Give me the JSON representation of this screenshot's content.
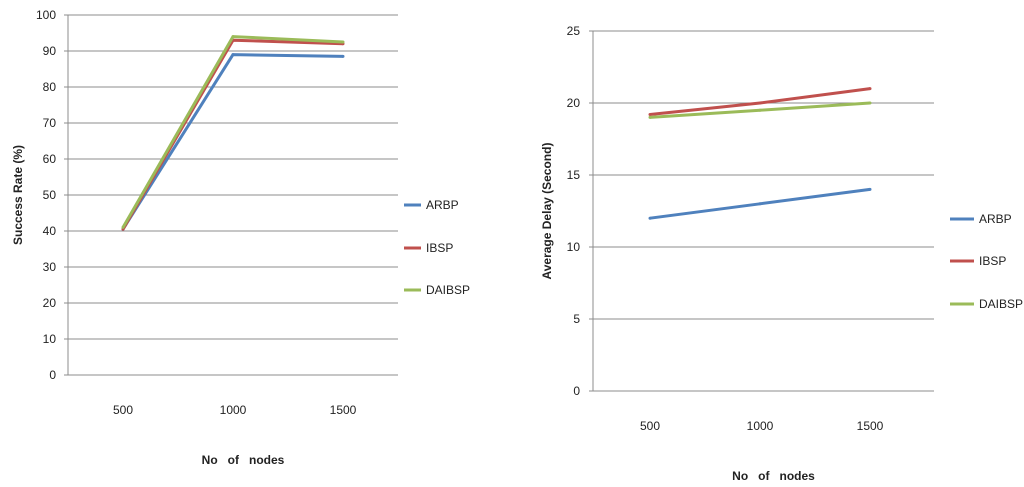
{
  "chart_data": [
    {
      "type": "line",
      "title": "",
      "xlabel": "No   of   nodes",
      "ylabel": "Success Rate (%)",
      "categories": [
        "500",
        "1000",
        "1500"
      ],
      "ylim": [
        0,
        100
      ],
      "yticks": [
        0,
        10,
        20,
        30,
        40,
        50,
        60,
        70,
        80,
        90,
        100
      ],
      "grid": "horizontal",
      "legend": "right",
      "series": [
        {
          "name": "ARBP",
          "color": "#4F81BD",
          "values": [
            40.5,
            89,
            88.5
          ]
        },
        {
          "name": "IBSP",
          "color": "#C0504D",
          "values": [
            40.5,
            93,
            92
          ]
        },
        {
          "name": "DAIBSP",
          "color": "#9BBB59",
          "values": [
            41,
            94,
            92.5
          ]
        }
      ]
    },
    {
      "type": "line",
      "title": "",
      "xlabel": "No   of   nodes",
      "ylabel": "Average Delay (Second)",
      "categories": [
        "500",
        "1000",
        "1500"
      ],
      "ylim": [
        0,
        25
      ],
      "yticks": [
        0,
        5,
        10,
        15,
        20,
        25
      ],
      "grid": "horizontal",
      "legend": "right",
      "series": [
        {
          "name": "ARBP",
          "color": "#4F81BD",
          "values": [
            12,
            13,
            14
          ]
        },
        {
          "name": "IBSP",
          "color": "#C0504D",
          "values": [
            19.2,
            20,
            21
          ]
        },
        {
          "name": "DAIBSP",
          "color": "#9BBB59",
          "values": [
            19,
            19.5,
            20
          ]
        }
      ]
    }
  ]
}
